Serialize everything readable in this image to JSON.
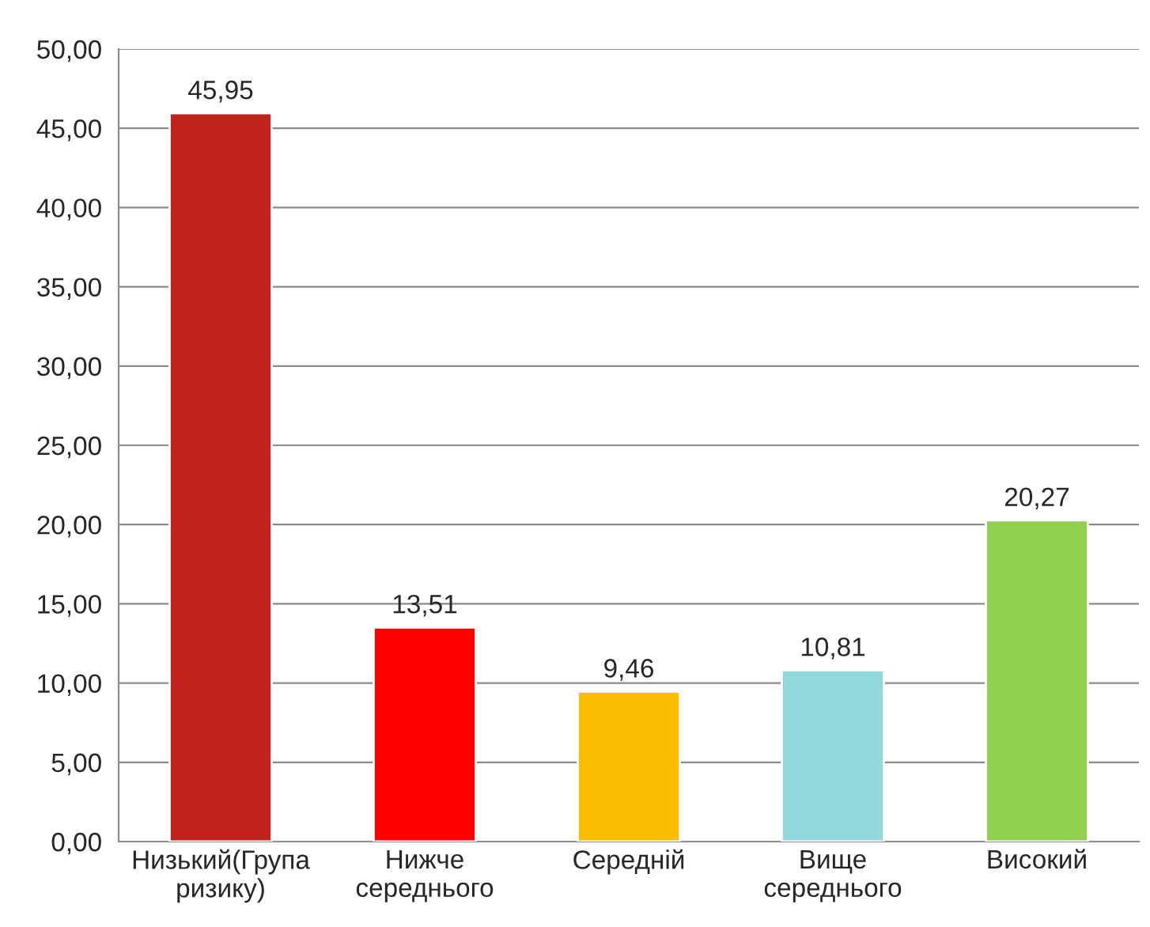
{
  "chart_data": {
    "type": "bar",
    "categories": [
      "Низький(Група\nризику)",
      "Нижче\nсереднього",
      "Середній",
      "Вище\nсереднього",
      "Високий"
    ],
    "values": [
      45.95,
      13.51,
      9.46,
      10.81,
      20.27
    ],
    "colors": [
      "#c0231b",
      "#ff0000",
      "#fbbc04",
      "#93d8dd",
      "#92d050"
    ],
    "value_labels": [
      "45,95",
      "13,51",
      "9,46",
      "10,81",
      "20,27"
    ],
    "ylim": [
      0,
      50
    ],
    "yticks": [
      {
        "value": 0,
        "label": "0,00"
      },
      {
        "value": 5,
        "label": "5,00"
      },
      {
        "value": 10,
        "label": "10,00"
      },
      {
        "value": 15,
        "label": "15,00"
      },
      {
        "value": 20,
        "label": "20,00"
      },
      {
        "value": 25,
        "label": "25,00"
      },
      {
        "value": 30,
        "label": "30,00"
      },
      {
        "value": 35,
        "label": "35,00"
      },
      {
        "value": 40,
        "label": "40,00"
      },
      {
        "value": 45,
        "label": "45,00"
      },
      {
        "value": 50,
        "label": "50,00"
      }
    ],
    "grid": "y",
    "legend": false
  }
}
